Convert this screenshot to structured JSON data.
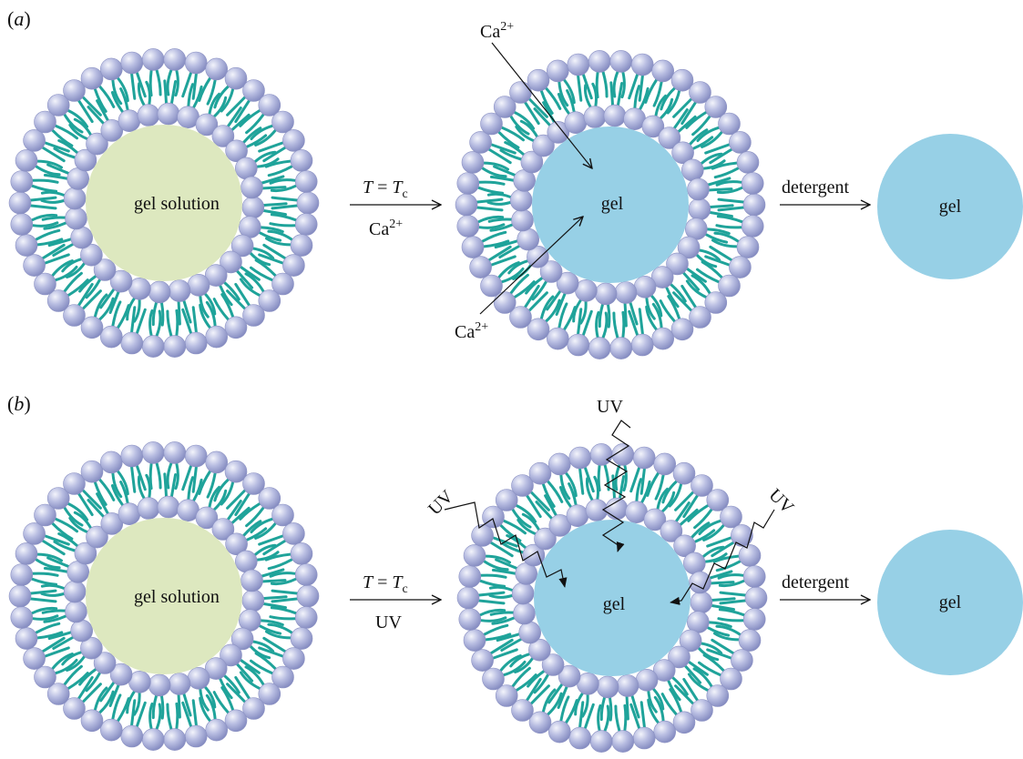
{
  "panels": [
    {
      "label": "(a)",
      "label_letter": "a",
      "stage1_core": "gel solution",
      "step1_top_var": "T",
      "step1_top_sub": "c",
      "step1_bottom": "Ca",
      "step1_bottom_sup": "2+",
      "stage2_core": "gel",
      "stimulus_top": "Ca",
      "stimulus_top_sup": "2+",
      "stimulus_bottom": "Ca",
      "stimulus_bottom_sup": "2+",
      "step2_label": "detergent",
      "stage3_core": "gel"
    },
    {
      "label": "(b)",
      "label_letter": "b",
      "stage1_core": "gel solution",
      "step1_top_var": "T",
      "step1_top_sub": "c",
      "step1_bottom": "UV",
      "stage2_core": "gel",
      "uv_top": "UV",
      "uv_left": "UV",
      "uv_right": "UV",
      "step2_label": "detergent",
      "stage3_core": "gel"
    }
  ],
  "colors": {
    "lipid_head": "#aeb4dc",
    "lipid_tail": "#1fa39a",
    "gel_solution": "#dde8bf",
    "gel": "#97d0e6",
    "text": "#111111"
  }
}
